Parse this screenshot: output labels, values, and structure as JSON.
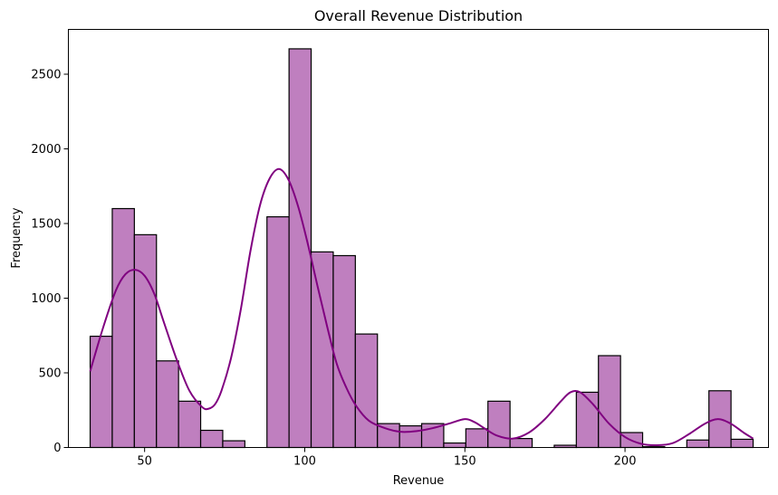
{
  "chart_data": {
    "type": "bar",
    "title": "Overall Revenue Distribution",
    "xlabel": "Revenue",
    "ylabel": "Frequency",
    "xlim": [
      26.2,
      244.8
    ],
    "ylim": [
      0,
      2800
    ],
    "x_ticks": [
      50,
      100,
      150,
      200
    ],
    "y_ticks": [
      0,
      500,
      1000,
      1500,
      2000,
      2500
    ],
    "bin_start": 33.0,
    "bin_width": 6.9,
    "values": [
      745,
      1600,
      1425,
      580,
      310,
      115,
      45,
      0,
      1545,
      2670,
      1310,
      1285,
      760,
      160,
      145,
      160,
      30,
      125,
      310,
      60,
      0,
      15,
      370,
      615,
      100,
      5,
      0,
      50,
      380,
      55
    ],
    "bar_color": "#BF7FBF",
    "bar_edge_color": "#000000",
    "kde": {
      "color": "#800080",
      "x": [
        33,
        37,
        41,
        44,
        47,
        50,
        53,
        56,
        60,
        64,
        68,
        70,
        72,
        74,
        77,
        80,
        83,
        86,
        89,
        92,
        95,
        98,
        101,
        104,
        107,
        110,
        113,
        116,
        120,
        125,
        130,
        135,
        140,
        145,
        150,
        153,
        156,
        160,
        165,
        170,
        175,
        180,
        183,
        186,
        190,
        195,
        200,
        205,
        210,
        215,
        220,
        225,
        229,
        233,
        237,
        240
      ],
      "y": [
        510,
        800,
        1050,
        1160,
        1190,
        1150,
        1030,
        840,
        590,
        380,
        270,
        260,
        290,
        380,
        600,
        920,
        1310,
        1620,
        1800,
        1865,
        1790,
        1610,
        1360,
        1080,
        810,
        560,
        400,
        280,
        180,
        130,
        105,
        110,
        130,
        160,
        190,
        170,
        130,
        80,
        60,
        100,
        190,
        310,
        370,
        370,
        290,
        160,
        70,
        25,
        15,
        30,
        90,
        160,
        190,
        160,
        100,
        60
      ]
    },
    "grid": false,
    "legend": "none"
  }
}
